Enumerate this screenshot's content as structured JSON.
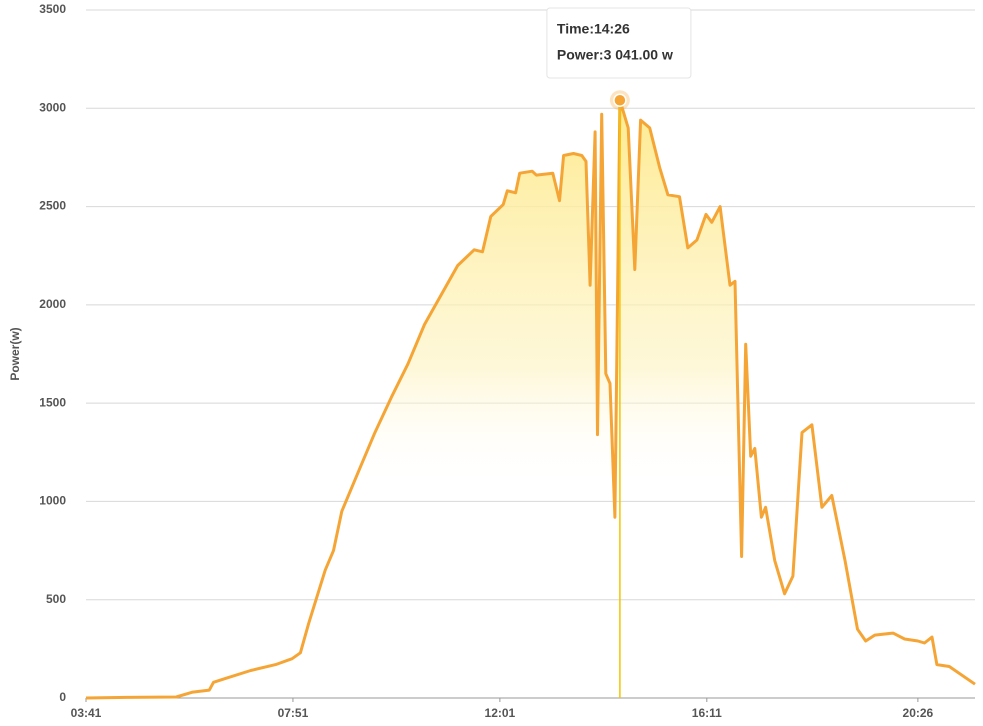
{
  "chart_data": {
    "type": "area",
    "y_label": "Power(w)",
    "x": [
      "03:41",
      "04:30",
      "05:30",
      "05:50",
      "06:10",
      "06:15",
      "06:30",
      "07:00",
      "07:30",
      "07:50",
      "08:00",
      "08:10",
      "08:30",
      "08:40",
      "08:50",
      "09:10",
      "09:30",
      "09:50",
      "10:10",
      "10:30",
      "10:50",
      "11:10",
      "11:30",
      "11:40",
      "11:50",
      "12:05",
      "12:10",
      "12:20",
      "12:25",
      "12:40",
      "12:45",
      "13:05",
      "13:13",
      "13:18",
      "13:30",
      "13:40",
      "13:45",
      "13:50",
      "13:56",
      "13:59",
      "14:04",
      "14:09",
      "14:14",
      "14:20",
      "14:26",
      "14:36",
      "14:44",
      "14:51",
      "15:02",
      "15:14",
      "15:24",
      "15:38",
      "15:48",
      "15:59",
      "16:10",
      "16:17",
      "16:27",
      "16:39",
      "16:45",
      "16:53",
      "16:58",
      "17:04",
      "17:09",
      "17:17",
      "17:22",
      "17:33",
      "17:45",
      "17:55",
      "18:06",
      "18:18",
      "18:30",
      "18:42",
      "18:58",
      "19:13",
      "19:23",
      "19:34",
      "19:56",
      "20:10",
      "20:26",
      "20:34",
      "20:43",
      "20:49",
      "21:04",
      "21:35"
    ],
    "values": [
      0,
      3,
      5,
      30,
      40,
      80,
      100,
      140,
      170,
      200,
      230,
      380,
      650,
      750,
      950,
      1150,
      1350,
      1530,
      1700,
      1900,
      2050,
      2200,
      2280,
      2270,
      2450,
      2510,
      2580,
      2570,
      2670,
      2680,
      2660,
      2670,
      2530,
      2760,
      2770,
      2760,
      2730,
      2100,
      2880,
      1340,
      2970,
      1650,
      1600,
      920,
      3041,
      2900,
      2180,
      2940,
      2900,
      2700,
      2560,
      2550,
      2290,
      2330,
      2460,
      2420,
      2500,
      2100,
      2120,
      720,
      1800,
      1230,
      1270,
      920,
      970,
      700,
      530,
      620,
      1350,
      1390,
      970,
      1030,
      700,
      350,
      290,
      320,
      330,
      300,
      290,
      280,
      310,
      170,
      160,
      70
    ],
    "color": "#f5a535",
    "xlim": [
      "03:41",
      "21:35"
    ],
    "xticks": [
      "03:41",
      "07:51",
      "12:01",
      "16:11",
      "20:26"
    ],
    "ylim": [
      0,
      3500
    ],
    "yticks": [
      0,
      500,
      1000,
      1500,
      2000,
      2500,
      3000,
      3500
    ],
    "grid": true,
    "tooltip": {
      "x": "14:26",
      "value": 3041,
      "time_label": "Time:14:26",
      "power_label": "Power:3 041.00 w"
    }
  }
}
